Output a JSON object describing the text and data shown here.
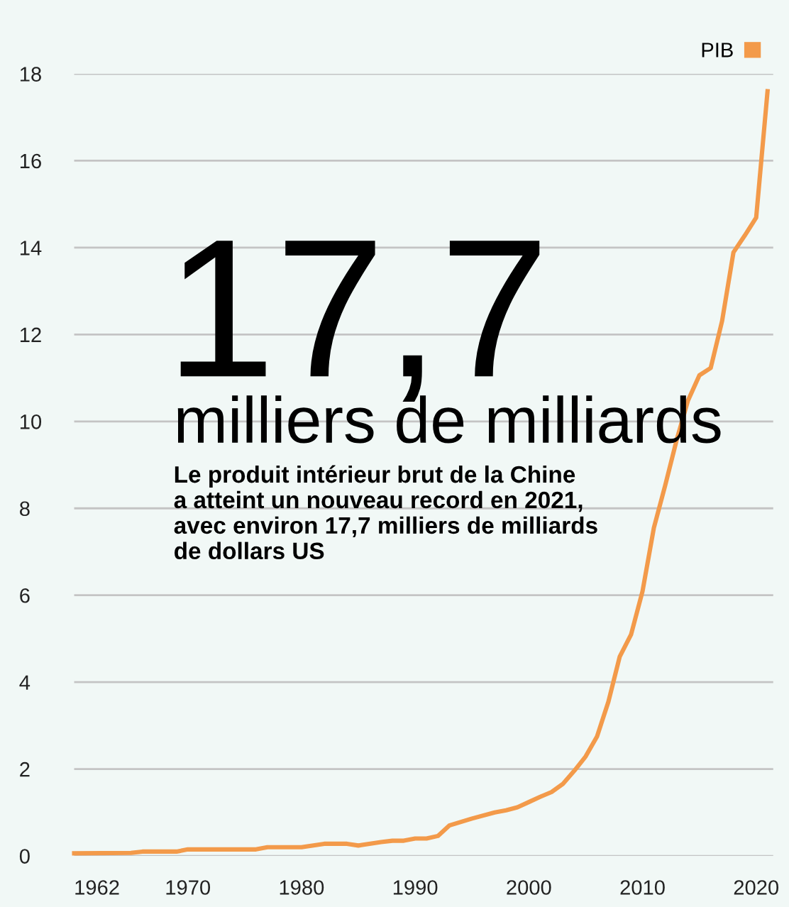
{
  "chart_data": {
    "type": "line",
    "annotations": [
      "17,7",
      "milliers de milliards",
      "Le produit intérieur brut de la Chine\na atteint un nouveau record en 2021,\navec environ 17,7 milliers de milliards\nde dollars US"
    ],
    "x": [
      1960,
      1965,
      1966,
      1969,
      1970,
      1976,
      1977,
      1980,
      1982,
      1984,
      1985,
      1987,
      1988,
      1989,
      1990,
      1991,
      1992,
      1993,
      1995,
      1997,
      1998,
      1999,
      2000,
      2001,
      2002,
      2003,
      2004,
      2005,
      2006,
      2007,
      2008,
      2009,
      2010,
      2011,
      2012,
      2013,
      2014,
      2015,
      2016,
      2017,
      2018,
      2019,
      2020,
      2021
    ],
    "series": [
      {
        "name": "PIB",
        "color": "#f39a4a",
        "values": [
          0.06,
          0.07,
          0.1,
          0.1,
          0.15,
          0.15,
          0.2,
          0.2,
          0.28,
          0.28,
          0.24,
          0.32,
          0.35,
          0.35,
          0.4,
          0.4,
          0.46,
          0.7,
          0.86,
          1.0,
          1.05,
          1.12,
          1.24,
          1.36,
          1.47,
          1.66,
          1.96,
          2.29,
          2.75,
          3.55,
          4.59,
          5.1,
          6.09,
          7.55,
          8.53,
          9.57,
          10.48,
          11.06,
          11.23,
          12.31,
          13.89,
          14.28,
          14.69,
          17.6
        ]
      }
    ],
    "xlim": [
      1960,
      2021.5
    ],
    "xticks": [
      1962,
      1970,
      1980,
      1990,
      2000,
      2010,
      2020
    ],
    "ylim": [
      0,
      18
    ],
    "yticks": [
      0,
      2,
      4,
      6,
      8,
      10,
      12,
      14,
      16,
      18
    ],
    "grid": "y",
    "legend": "top right",
    "line_style": "solid",
    "marker": "none"
  }
}
